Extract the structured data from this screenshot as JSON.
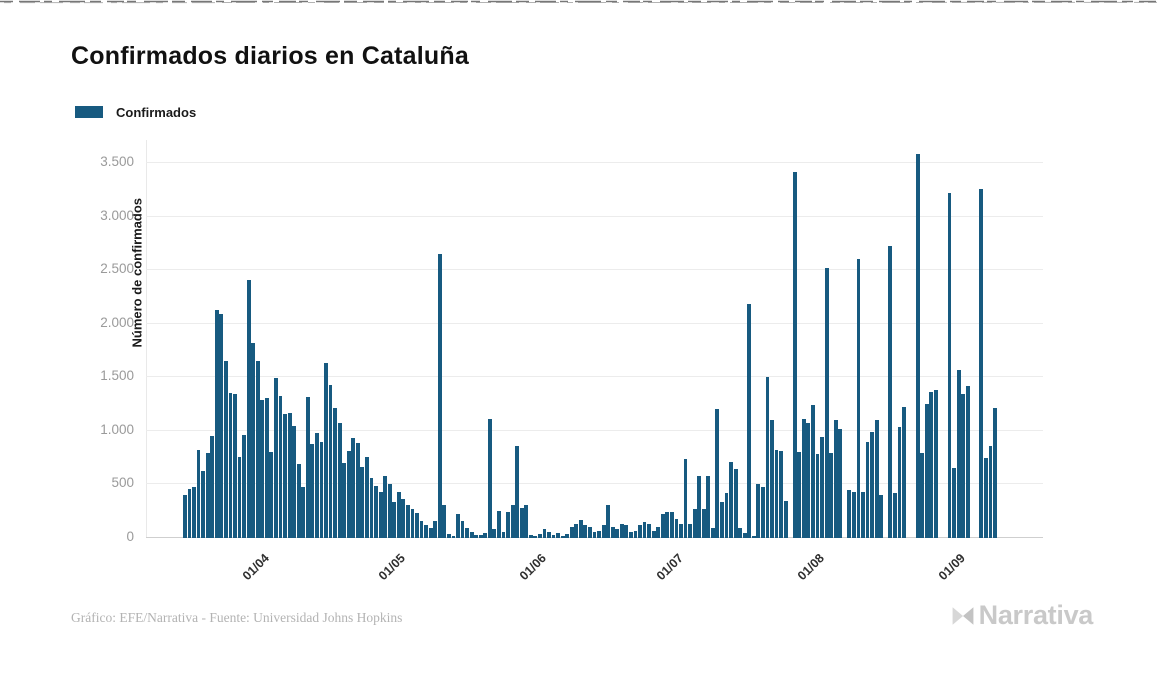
{
  "page": {
    "title": "Confirmados diarios en Cataluña",
    "legend": {
      "label": "Confirmados"
    },
    "footer": {
      "credit": "Gráfico: EFE/Narrativa - Fuente: Universidad Johns Hopkins"
    },
    "brand": {
      "wordmark": "Narrativa"
    }
  },
  "colors": {
    "bar": "#175a80",
    "gridline": "#ececec",
    "baseline": "#cfcfcf",
    "y_tick_text": "#9a9a9a",
    "x_tick_text": "#2f2f2f",
    "title_text": "#111111",
    "footer_text": "#b3b3b3",
    "brand_text": "#c9c9c9"
  },
  "chart_data": {
    "type": "bar",
    "title": "Confirmados diarios en Cataluña",
    "xlabel": "",
    "ylabel": "Número de confirmados",
    "series_name": "Confirmados",
    "bar_color": "#175a80",
    "grid": "horizontal",
    "legend_position": "top-left",
    "ylim": [
      0,
      3700
    ],
    "ytick_values": [
      0,
      500,
      1000,
      1500,
      2000,
      2500,
      3000,
      3500
    ],
    "ytick_labels": [
      "0",
      "500",
      "1.000",
      "1.500",
      "2.000",
      "2.500",
      "3.000",
      "3.500"
    ],
    "xtick_labels": [
      "01/04",
      "01/05",
      "01/06",
      "01/07",
      "01/08",
      "01/09"
    ],
    "xtick_indices": [
      16,
      46,
      77,
      107,
      138,
      169
    ],
    "x_start_date": "2020-03-16",
    "values": [
      400,
      455,
      475,
      825,
      630,
      790,
      950,
      2130,
      2095,
      1650,
      1355,
      1340,
      755,
      965,
      2410,
      1820,
      1655,
      1285,
      1310,
      800,
      1495,
      1330,
      1160,
      1170,
      1050,
      695,
      475,
      1320,
      880,
      980,
      900,
      1630,
      1430,
      1215,
      1075,
      700,
      810,
      935,
      890,
      660,
      755,
      560,
      485,
      430,
      575,
      505,
      340,
      425,
      360,
      310,
      275,
      230,
      160,
      120,
      95,
      155,
      2650,
      310,
      40,
      15,
      220,
      160,
      95,
      55,
      30,
      25,
      45,
      1110,
      85,
      250,
      55,
      240,
      310,
      860,
      280,
      305,
      25,
      15,
      35,
      80,
      55,
      30,
      45,
      20,
      40,
      100,
      135,
      165,
      120,
      105,
      55,
      70,
      120,
      310,
      105,
      85,
      135,
      120,
      55,
      70,
      120,
      150,
      135,
      70,
      105,
      225,
      245,
      240,
      180,
      135,
      735,
      135,
      275,
      580,
      275,
      575,
      90,
      1200,
      335,
      420,
      710,
      645,
      90,
      45,
      2185,
      20,
      505,
      480,
      1505,
      1105,
      820,
      815,
      350,
      0,
      3420,
      805,
      1115,
      1075,
      1245,
      785,
      945,
      2520,
      790,
      1105,
      1020,
      0,
      445,
      430,
      2605,
      430,
      895,
      990,
      1100,
      400,
      0,
      2725,
      420,
      1035,
      1225,
      0,
      0,
      3585,
      795,
      1255,
      1365,
      1385,
      0,
      0,
      3220,
      655,
      1570,
      1345,
      1415,
      0,
      0,
      3260,
      745,
      855,
      1215
    ]
  }
}
